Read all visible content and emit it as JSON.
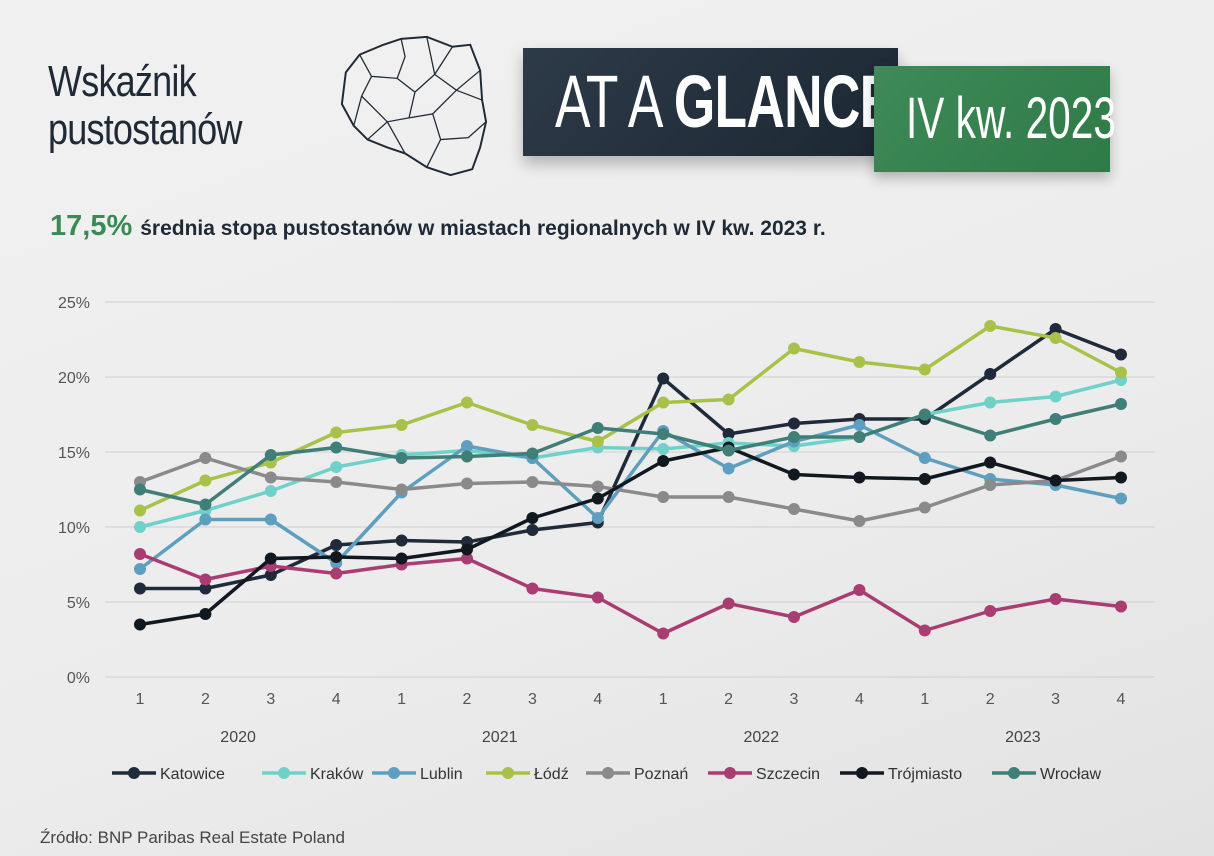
{
  "title": "Wskaźnik pustostanów",
  "banner": {
    "prefix": "AT A",
    "emphasis": "GLANCE",
    "period": "IV kw. 2023"
  },
  "headline": {
    "value": "17,5%",
    "text": "średnia stopa pustostanów w miastach regionalnych w IV kw. 2023 r."
  },
  "source": "Źródło: BNP Paribas Real Estate Poland",
  "chart_data": {
    "type": "line",
    "x": [
      "1",
      "2",
      "3",
      "4",
      "1",
      "2",
      "3",
      "4",
      "1",
      "2",
      "3",
      "4",
      "1",
      "2",
      "3",
      "4"
    ],
    "year_labels": [
      "2020",
      "2021",
      "2022",
      "2023"
    ],
    "y_ticks": [
      "0%",
      "5%",
      "10%",
      "15%",
      "20%",
      "25%"
    ],
    "ylim": [
      0,
      25
    ],
    "grid": true,
    "legend_position": "bottom",
    "series": [
      {
        "name": "Katowice",
        "color": "#1f2a3a",
        "values": [
          5.9,
          5.9,
          6.8,
          8.8,
          9.1,
          9.0,
          9.8,
          10.3,
          19.9,
          16.2,
          16.9,
          17.2,
          17.2,
          20.2,
          23.2,
          21.5
        ]
      },
      {
        "name": "Kraków",
        "color": "#6fd1c9",
        "values": [
          10.0,
          11.1,
          12.4,
          14.0,
          14.8,
          15.1,
          14.6,
          15.3,
          15.2,
          15.6,
          15.4,
          16.0,
          17.5,
          18.3,
          18.7,
          19.8
        ]
      },
      {
        "name": "Lublin",
        "color": "#5e9fbf",
        "values": [
          7.2,
          10.5,
          10.5,
          7.6,
          12.3,
          15.4,
          14.6,
          10.6,
          16.4,
          13.9,
          15.7,
          16.8,
          14.6,
          13.2,
          12.8,
          11.9
        ]
      },
      {
        "name": "Łódź",
        "color": "#a8c249",
        "values": [
          11.1,
          13.1,
          14.3,
          16.3,
          16.8,
          18.3,
          16.8,
          15.7,
          18.3,
          18.5,
          21.9,
          21.0,
          20.5,
          23.4,
          22.6,
          20.3
        ]
      },
      {
        "name": "Poznań",
        "color": "#8a8a8a",
        "values": [
          13.0,
          14.6,
          13.3,
          13.0,
          12.5,
          12.9,
          13.0,
          12.7,
          12.0,
          12.0,
          11.2,
          10.4,
          11.3,
          12.8,
          13.1,
          14.7
        ]
      },
      {
        "name": "Szczecin",
        "color": "#a93d72",
        "values": [
          8.2,
          6.5,
          7.4,
          6.9,
          7.5,
          7.9,
          5.9,
          5.3,
          2.9,
          4.9,
          4.0,
          5.8,
          3.1,
          4.4,
          5.2,
          4.7
        ]
      },
      {
        "name": "Trójmiasto",
        "color": "#111820",
        "values": [
          3.5,
          4.2,
          7.9,
          8.0,
          7.9,
          8.5,
          10.6,
          11.9,
          14.4,
          15.3,
          13.5,
          13.3,
          13.2,
          14.3,
          13.1,
          13.3
        ]
      },
      {
        "name": "Wrocław",
        "color": "#3f7f78",
        "values": [
          12.5,
          11.5,
          14.8,
          15.3,
          14.6,
          14.7,
          14.9,
          16.6,
          16.2,
          15.1,
          16.0,
          16.0,
          17.5,
          16.1,
          17.2,
          18.2
        ]
      }
    ]
  }
}
